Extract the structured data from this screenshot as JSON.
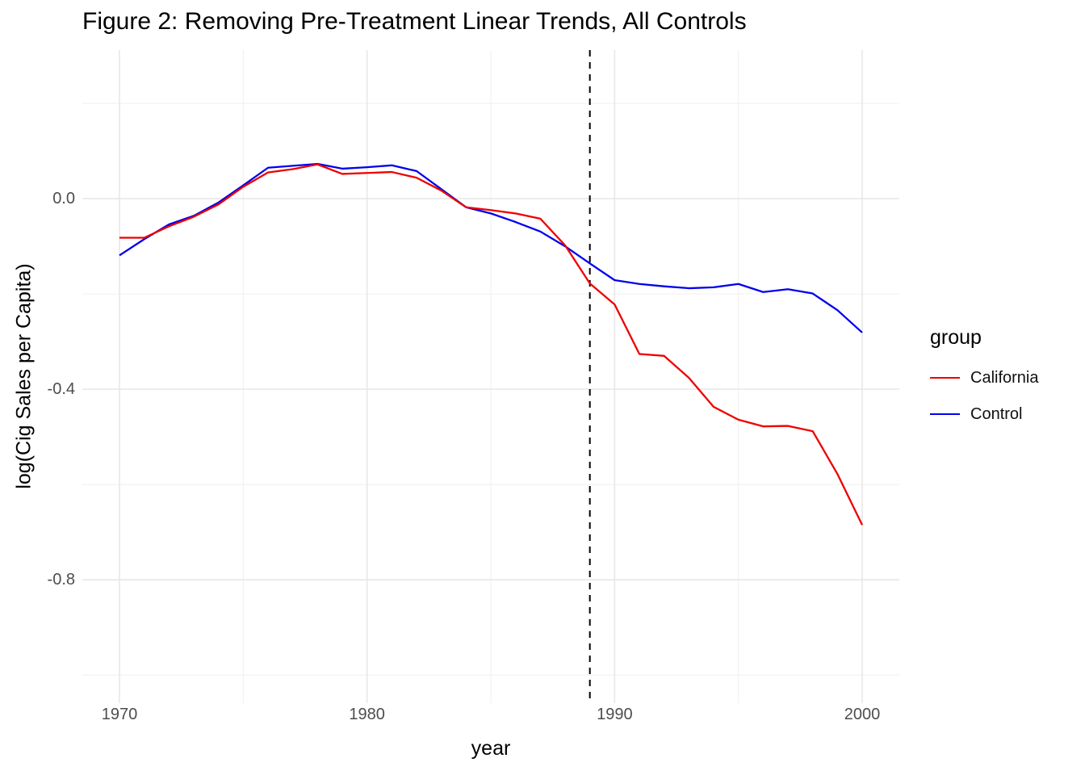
{
  "chart": {
    "title": "Figure 2: Removing Pre-Treatment Linear Trends, All Controls",
    "xlabel": "year",
    "ylabel": "log(Cig Sales per Capita)",
    "legend": {
      "title": "group",
      "entries": [
        {
          "label": "California",
          "color": "#EE0000"
        },
        {
          "label": "Control",
          "color": "#0000EE"
        }
      ]
    }
  },
  "chart_data": {
    "type": "line",
    "title": "Figure 2: Removing Pre-Treatment Linear Trends, All Controls",
    "xlabel": "year",
    "ylabel": "log(Cig Sales per Capita)",
    "x": [
      1970,
      1971,
      1972,
      1973,
      1974,
      1975,
      1976,
      1977,
      1978,
      1979,
      1980,
      1981,
      1982,
      1983,
      1984,
      1985,
      1986,
      1987,
      1988,
      1989,
      1990,
      1991,
      1992,
      1993,
      1994,
      1995,
      1996,
      1997,
      1998,
      1999,
      2000
    ],
    "series": [
      {
        "name": "California",
        "color": "#EE0000",
        "values": [
          -0.082,
          -0.082,
          -0.058,
          -0.038,
          -0.012,
          0.025,
          0.055,
          0.062,
          0.072,
          0.052,
          0.054,
          0.056,
          0.044,
          0.017,
          -0.018,
          -0.024,
          -0.031,
          -0.042,
          -0.098,
          -0.178,
          -0.222,
          -0.326,
          -0.33,
          -0.376,
          -0.437,
          -0.464,
          -0.478,
          -0.477,
          -0.488,
          -0.578,
          -0.685
        ]
      },
      {
        "name": "Control",
        "color": "#0000EE",
        "values": [
          -0.119,
          -0.085,
          -0.054,
          -0.036,
          -0.008,
          0.028,
          0.065,
          0.069,
          0.073,
          0.063,
          0.066,
          0.07,
          0.058,
          0.02,
          -0.018,
          -0.031,
          -0.049,
          -0.069,
          -0.1,
          -0.136,
          -0.171,
          -0.179,
          -0.184,
          -0.188,
          -0.186,
          -0.179,
          -0.196,
          -0.19,
          -0.199,
          -0.234,
          -0.281
        ]
      }
    ],
    "xlim": [
      1968.5,
      2001.5
    ],
    "ylim": [
      -1.059,
      0.312
    ],
    "x_major_ticks": [
      1970,
      1980,
      1990,
      2000
    ],
    "x_tick_labels": [
      "1970",
      "1980",
      "1990",
      "2000"
    ],
    "x_minor_ticks": [
      1975,
      1985,
      1995
    ],
    "y_major_ticks": [
      0.0,
      -0.4,
      -0.8
    ],
    "y_tick_labels": [
      "0.0",
      "-0.4",
      "-0.8"
    ],
    "y_minor_ticks": [
      0.2,
      -0.2,
      -0.6,
      -1.0
    ],
    "grid": true,
    "legend_position": "right",
    "vline": {
      "x": 1989,
      "style": "dashed",
      "color": "#000000"
    }
  },
  "colors": {
    "background": "#FFFFFF",
    "grid_major": "#E7E7E7",
    "grid_minor": "#F0F0F0",
    "axis_text": "#4D4D4D",
    "text": "#000000",
    "california_line": "#EE0000",
    "control_line": "#0000EE",
    "policy_line": "#000000"
  }
}
